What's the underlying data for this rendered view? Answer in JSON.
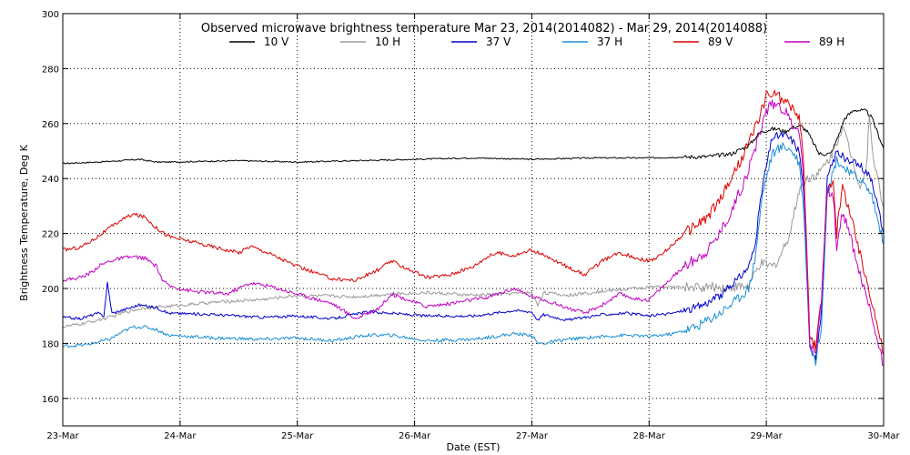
{
  "chart_data": {
    "type": "line",
    "title": "Observed microwave brightness temperature Mar 23, 2014(2014082) - Mar 29, 2014(2014088)",
    "xlabel": "Date (EST)",
    "ylabel": "Brightness Temperature, Deg K",
    "x_unit": "days since 23-Mar",
    "xlim": [
      0,
      7
    ],
    "ylim": [
      150,
      300
    ],
    "grid": true,
    "legend_position": "top-center",
    "x_ticks": [
      {
        "value": 0,
        "label": "23-Mar"
      },
      {
        "value": 1,
        "label": "24-Mar"
      },
      {
        "value": 2,
        "label": "25-Mar"
      },
      {
        "value": 3,
        "label": "26-Mar"
      },
      {
        "value": 4,
        "label": "27-Mar"
      },
      {
        "value": 5,
        "label": "28-Mar"
      },
      {
        "value": 6,
        "label": "29-Mar"
      },
      {
        "value": 7,
        "label": "30-Mar"
      }
    ],
    "y_ticks": [
      160,
      180,
      200,
      220,
      240,
      260,
      280,
      300
    ],
    "series": [
      {
        "name": "10 V",
        "color": "#000000",
        "points": [
          [
            0,
            245.5
          ],
          [
            0.3,
            246
          ],
          [
            0.5,
            246.5
          ],
          [
            0.65,
            247
          ],
          [
            0.8,
            246
          ],
          [
            0.9,
            246
          ],
          [
            1.5,
            246.5
          ],
          [
            2,
            246
          ],
          [
            2.5,
            246.5
          ],
          [
            3,
            247
          ],
          [
            3.5,
            247.5
          ],
          [
            4,
            247
          ],
          [
            4.5,
            247.5
          ],
          [
            5,
            247.5
          ],
          [
            5.5,
            248
          ],
          [
            5.7,
            249
          ],
          [
            5.85,
            252
          ],
          [
            5.95,
            257
          ],
          [
            6.05,
            258
          ],
          [
            6.1,
            258
          ],
          [
            6.15,
            257
          ],
          [
            6.25,
            259
          ],
          [
            6.3,
            259
          ],
          [
            6.35,
            257
          ],
          [
            6.45,
            249
          ],
          [
            6.55,
            249
          ],
          [
            6.6,
            254
          ],
          [
            6.67,
            262
          ],
          [
            6.75,
            265
          ],
          [
            6.85,
            264.5
          ],
          [
            6.9,
            262
          ],
          [
            7,
            251
          ]
        ]
      },
      {
        "name": "10 H",
        "color": "#9a9a9a",
        "points": [
          [
            0,
            186
          ],
          [
            0.15,
            187
          ],
          [
            0.3,
            188.5
          ],
          [
            0.4,
            189.5
          ],
          [
            0.5,
            191
          ],
          [
            0.7,
            193
          ],
          [
            0.9,
            193.5
          ],
          [
            1.3,
            195
          ],
          [
            1.7,
            196
          ],
          [
            2,
            197.5
          ],
          [
            2.5,
            197
          ],
          [
            2.8,
            198
          ],
          [
            3.1,
            198.5
          ],
          [
            3.5,
            197.5
          ],
          [
            4,
            198.5
          ],
          [
            4.05,
            194
          ],
          [
            4.1,
            198.5
          ],
          [
            4.3,
            197.5
          ],
          [
            4.6,
            199
          ],
          [
            5,
            200.5
          ],
          [
            5.5,
            200.5
          ],
          [
            5.7,
            200.5
          ],
          [
            5.85,
            201
          ],
          [
            5.95,
            209
          ],
          [
            6.05,
            208
          ],
          [
            6.1,
            210
          ],
          [
            6.2,
            220
          ],
          [
            6.28,
            236
          ],
          [
            6.35,
            240
          ],
          [
            6.45,
            242
          ],
          [
            6.55,
            248
          ],
          [
            6.65,
            259
          ],
          [
            6.75,
            245
          ],
          [
            6.8,
            237
          ],
          [
            6.85,
            243
          ],
          [
            6.88,
            262
          ],
          [
            6.92,
            246
          ],
          [
            7,
            229
          ]
        ]
      },
      {
        "name": "37 V",
        "color": "#0000cd",
        "points": [
          [
            0,
            189.5
          ],
          [
            0.15,
            189
          ],
          [
            0.3,
            191
          ],
          [
            0.35,
            190
          ],
          [
            0.38,
            202
          ],
          [
            0.42,
            191
          ],
          [
            0.5,
            192
          ],
          [
            0.65,
            194
          ],
          [
            0.8,
            193
          ],
          [
            0.9,
            191
          ],
          [
            1.3,
            190.5
          ],
          [
            1.7,
            189.5
          ],
          [
            2,
            190
          ],
          [
            2.3,
            189
          ],
          [
            2.6,
            191.5
          ],
          [
            2.8,
            191
          ],
          [
            3.1,
            190
          ],
          [
            3.5,
            190
          ],
          [
            3.85,
            192
          ],
          [
            4,
            191.5
          ],
          [
            4.05,
            188.5
          ],
          [
            4.1,
            190.5
          ],
          [
            4.3,
            188.5
          ],
          [
            4.6,
            190.5
          ],
          [
            4.8,
            191
          ],
          [
            5,
            190
          ],
          [
            5.2,
            191
          ],
          [
            5.4,
            193
          ],
          [
            5.6,
            197
          ],
          [
            5.75,
            203
          ],
          [
            5.85,
            208
          ],
          [
            5.9,
            215
          ],
          [
            5.97,
            238
          ],
          [
            6.05,
            255
          ],
          [
            6.15,
            256
          ],
          [
            6.22,
            254
          ],
          [
            6.28,
            250
          ],
          [
            6.32,
            235
          ],
          [
            6.37,
            180
          ],
          [
            6.42,
            175
          ],
          [
            6.47,
            191
          ],
          [
            6.52,
            240
          ],
          [
            6.6,
            250
          ],
          [
            6.7,
            246
          ],
          [
            6.8,
            245
          ],
          [
            6.9,
            240
          ],
          [
            7,
            220
          ]
        ]
      },
      {
        "name": "37 H",
        "color": "#1a8fd4",
        "points": [
          [
            0,
            179
          ],
          [
            0.2,
            179.5
          ],
          [
            0.4,
            181.5
          ],
          [
            0.5,
            184
          ],
          [
            0.6,
            186
          ],
          [
            0.7,
            186
          ],
          [
            0.8,
            185
          ],
          [
            0.9,
            183
          ],
          [
            1.3,
            182
          ],
          [
            1.7,
            181.5
          ],
          [
            2,
            182
          ],
          [
            2.3,
            181
          ],
          [
            2.6,
            183
          ],
          [
            2.8,
            183
          ],
          [
            3.1,
            181
          ],
          [
            3.5,
            181.5
          ],
          [
            3.85,
            183.5
          ],
          [
            4,
            183
          ],
          [
            4.05,
            180
          ],
          [
            4.1,
            180
          ],
          [
            4.3,
            181.5
          ],
          [
            4.6,
            182.5
          ],
          [
            4.8,
            183
          ],
          [
            5,
            182.5
          ],
          [
            5.2,
            183.5
          ],
          [
            5.4,
            186
          ],
          [
            5.6,
            191
          ],
          [
            5.75,
            196
          ],
          [
            5.85,
            200
          ],
          [
            5.9,
            210
          ],
          [
            5.97,
            235
          ],
          [
            6.05,
            249
          ],
          [
            6.15,
            252
          ],
          [
            6.22,
            250
          ],
          [
            6.28,
            246
          ],
          [
            6.32,
            228
          ],
          [
            6.37,
            180
          ],
          [
            6.42,
            173
          ],
          [
            6.47,
            187
          ],
          [
            6.52,
            235
          ],
          [
            6.6,
            247
          ],
          [
            6.7,
            242
          ],
          [
            6.8,
            240
          ],
          [
            6.9,
            234
          ],
          [
            7,
            216
          ]
        ]
      },
      {
        "name": "89 V",
        "color": "#dd0000",
        "points": [
          [
            0,
            214
          ],
          [
            0.15,
            215
          ],
          [
            0.25,
            217.5
          ],
          [
            0.3,
            219
          ],
          [
            0.4,
            222
          ],
          [
            0.5,
            225
          ],
          [
            0.6,
            227
          ],
          [
            0.7,
            226
          ],
          [
            0.8,
            222
          ],
          [
            0.9,
            219
          ],
          [
            1.2,
            216
          ],
          [
            1.5,
            213
          ],
          [
            1.6,
            215.5
          ],
          [
            1.75,
            213
          ],
          [
            2,
            208
          ],
          [
            2.3,
            203.5
          ],
          [
            2.5,
            203
          ],
          [
            2.7,
            207
          ],
          [
            2.8,
            210
          ],
          [
            3,
            206
          ],
          [
            3.1,
            204
          ],
          [
            3.3,
            205
          ],
          [
            3.5,
            208
          ],
          [
            3.6,
            211
          ],
          [
            3.7,
            213
          ],
          [
            3.85,
            212
          ],
          [
            4,
            214
          ],
          [
            4.1,
            212
          ],
          [
            4.3,
            208
          ],
          [
            4.45,
            205
          ],
          [
            4.6,
            210
          ],
          [
            4.75,
            213
          ],
          [
            4.9,
            211
          ],
          [
            5,
            210
          ],
          [
            5.1,
            212
          ],
          [
            5.3,
            220
          ],
          [
            5.5,
            226
          ],
          [
            5.6,
            232
          ],
          [
            5.7,
            240
          ],
          [
            5.8,
            248
          ],
          [
            5.9,
            258
          ],
          [
            6,
            270
          ],
          [
            6.08,
            271
          ],
          [
            6.15,
            268
          ],
          [
            6.22,
            266
          ],
          [
            6.28,
            262
          ],
          [
            6.32,
            245
          ],
          [
            6.37,
            183
          ],
          [
            6.42,
            178
          ],
          [
            6.47,
            196
          ],
          [
            6.52,
            236
          ],
          [
            6.57,
            240
          ],
          [
            6.6,
            220
          ],
          [
            6.65,
            237
          ],
          [
            6.7,
            230
          ],
          [
            6.8,
            212
          ],
          [
            6.9,
            196
          ],
          [
            7,
            176
          ]
        ]
      },
      {
        "name": "89 H",
        "color": "#c400c4",
        "points": [
          [
            0,
            203
          ],
          [
            0.15,
            204
          ],
          [
            0.25,
            206
          ],
          [
            0.3,
            208
          ],
          [
            0.4,
            210
          ],
          [
            0.5,
            211
          ],
          [
            0.6,
            211.5
          ],
          [
            0.7,
            211
          ],
          [
            0.8,
            208
          ],
          [
            0.85,
            203
          ],
          [
            0.9,
            201
          ],
          [
            1.1,
            199
          ],
          [
            1.4,
            198
          ],
          [
            1.6,
            202
          ],
          [
            1.75,
            201
          ],
          [
            2,
            198
          ],
          [
            2.3,
            194.5
          ],
          [
            2.5,
            189
          ],
          [
            2.7,
            193
          ],
          [
            2.8,
            198
          ],
          [
            3,
            195
          ],
          [
            3.1,
            193.5
          ],
          [
            3.3,
            194.5
          ],
          [
            3.5,
            196
          ],
          [
            3.6,
            196.5
          ],
          [
            3.85,
            200
          ],
          [
            4,
            197
          ],
          [
            4.1,
            196
          ],
          [
            4.3,
            193
          ],
          [
            4.45,
            191
          ],
          [
            4.6,
            194
          ],
          [
            4.75,
            198
          ],
          [
            4.9,
            196
          ],
          [
            5,
            196
          ],
          [
            5.1,
            200
          ],
          [
            5.3,
            208
          ],
          [
            5.5,
            214
          ],
          [
            5.6,
            220
          ],
          [
            5.7,
            228
          ],
          [
            5.8,
            238
          ],
          [
            5.9,
            250
          ],
          [
            6,
            265
          ],
          [
            6.08,
            268
          ],
          [
            6.15,
            265
          ],
          [
            6.22,
            260
          ],
          [
            6.28,
            258
          ],
          [
            6.32,
            238
          ],
          [
            6.37,
            180
          ],
          [
            6.42,
            177
          ],
          [
            6.47,
            196
          ],
          [
            6.52,
            236
          ],
          [
            6.57,
            234
          ],
          [
            6.6,
            214
          ],
          [
            6.65,
            228
          ],
          [
            6.7,
            222
          ],
          [
            6.8,
            205
          ],
          [
            6.9,
            190
          ],
          [
            7,
            172
          ]
        ]
      }
    ]
  }
}
